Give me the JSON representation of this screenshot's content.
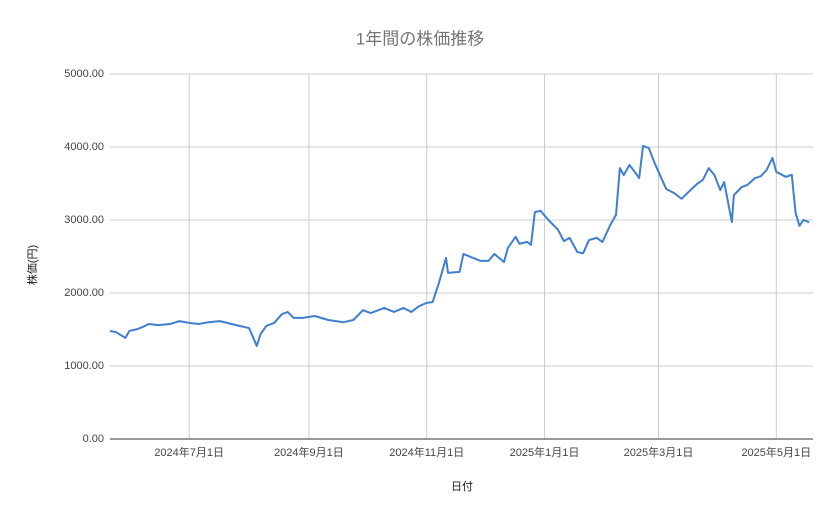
{
  "chart_data": {
    "type": "line",
    "title": "1年間の株価推移",
    "x_label": "日付",
    "y_label": "株価(円)",
    "color": "#3e7fd2",
    "grid": true,
    "xlim": [
      "2024-05-21",
      "2025-05-20"
    ],
    "xticks": [
      {
        "value": "2024-07-01",
        "label": "2024年7月1日"
      },
      {
        "value": "2024-09-01",
        "label": "2024年9月1日"
      },
      {
        "value": "2024-11-01",
        "label": "2024年11月1日"
      },
      {
        "value": "2025-01-01",
        "label": "2025年1月1日"
      },
      {
        "value": "2025-03-01",
        "label": "2025年3月1日"
      },
      {
        "value": "2025-05-01",
        "label": "2025年5月1日"
      }
    ],
    "ylim": [
      0,
      5000
    ],
    "yticks": [
      {
        "value": 0,
        "label": "0.00"
      },
      {
        "value": 1000,
        "label": "1000.00"
      },
      {
        "value": 2000,
        "label": "2000.00"
      },
      {
        "value": 3000,
        "label": "3000.00"
      },
      {
        "value": 4000,
        "label": "4000.00"
      },
      {
        "value": 5000,
        "label": "5000.00"
      }
    ],
    "x": [
      "2024-05-21",
      "2024-05-24",
      "2024-05-29",
      "2024-05-31",
      "2024-06-04",
      "2024-06-07",
      "2024-06-10",
      "2024-06-15",
      "2024-06-21",
      "2024-06-26",
      "2024-07-01",
      "2024-07-06",
      "2024-07-11",
      "2024-07-17",
      "2024-07-23",
      "2024-07-27",
      "2024-08-01",
      "2024-08-05",
      "2024-08-07",
      "2024-08-10",
      "2024-08-14",
      "2024-08-18",
      "2024-08-21",
      "2024-08-24",
      "2024-08-29",
      "2024-09-04",
      "2024-09-11",
      "2024-09-19",
      "2024-09-24",
      "2024-09-29",
      "2024-10-03",
      "2024-10-10",
      "2024-10-15",
      "2024-10-20",
      "2024-10-24",
      "2024-10-28",
      "2024-11-01",
      "2024-11-04",
      "2024-11-07",
      "2024-11-11",
      "2024-11-12",
      "2024-11-18",
      "2024-11-20",
      "2024-11-25",
      "2024-11-29",
      "2024-12-03",
      "2024-12-06",
      "2024-12-11",
      "2024-12-13",
      "2024-12-17",
      "2024-12-19",
      "2024-12-23",
      "2024-12-25",
      "2024-12-27",
      "2024-12-30",
      "2025-01-03",
      "2025-01-08",
      "2025-01-11",
      "2025-01-14",
      "2025-01-18",
      "2025-01-21",
      "2025-01-24",
      "2025-01-28",
      "2025-01-31",
      "2025-02-04",
      "2025-02-07",
      "2025-02-09",
      "2025-02-11",
      "2025-02-14",
      "2025-02-19",
      "2025-02-21",
      "2025-02-24",
      "2025-02-27",
      "2025-03-02",
      "2025-03-05",
      "2025-03-09",
      "2025-03-13",
      "2025-03-16",
      "2025-03-21",
      "2025-03-24",
      "2025-03-27",
      "2025-03-30",
      "2025-04-02",
      "2025-04-04",
      "2025-04-08",
      "2025-04-09",
      "2025-04-13",
      "2025-04-16",
      "2025-04-20",
      "2025-04-23",
      "2025-04-26",
      "2025-04-29",
      "2025-05-01",
      "2025-05-06",
      "2025-05-09",
      "2025-05-11",
      "2025-05-13",
      "2025-05-15",
      "2025-05-18"
    ],
    "values": [
      1480,
      1465,
      1385,
      1480,
      1505,
      1535,
      1575,
      1560,
      1575,
      1615,
      1590,
      1575,
      1600,
      1615,
      1575,
      1550,
      1520,
      1275,
      1440,
      1550,
      1590,
      1710,
      1740,
      1660,
      1660,
      1685,
      1630,
      1600,
      1630,
      1765,
      1725,
      1795,
      1740,
      1795,
      1740,
      1820,
      1865,
      1875,
      2110,
      2480,
      2275,
      2290,
      2535,
      2480,
      2440,
      2440,
      2535,
      2425,
      2615,
      2770,
      2675,
      2700,
      2660,
      3110,
      3125,
      3000,
      2865,
      2710,
      2755,
      2560,
      2545,
      2725,
      2755,
      2700,
      2930,
      3070,
      3710,
      3615,
      3755,
      3575,
      4015,
      3985,
      3780,
      3600,
      3425,
      3370,
      3290,
      3370,
      3495,
      3550,
      3710,
      3615,
      3410,
      3520,
      2970,
      3340,
      3450,
      3480,
      3575,
      3600,
      3685,
      3850,
      3660,
      3590,
      3620,
      3095,
      2920,
      3000,
      2970
    ]
  }
}
